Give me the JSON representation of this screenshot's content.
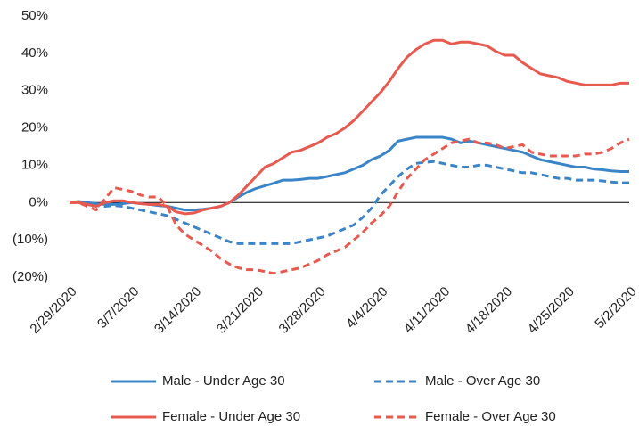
{
  "chart_data": {
    "type": "line",
    "categories": [
      "2/29/2020",
      null,
      null,
      null,
      null,
      null,
      null,
      "3/7/2020",
      null,
      null,
      null,
      null,
      null,
      null,
      "3/14/2020",
      null,
      null,
      null,
      null,
      null,
      null,
      "3/21/2020",
      null,
      null,
      null,
      null,
      null,
      null,
      "3/28/2020",
      null,
      null,
      null,
      null,
      null,
      null,
      "4/4/2020",
      null,
      null,
      null,
      null,
      null,
      null,
      "4/11/2020",
      null,
      null,
      null,
      null,
      null,
      null,
      "4/18/2020",
      null,
      null,
      null,
      null,
      null,
      null,
      "4/25/2020",
      null,
      null,
      null,
      null,
      null,
      null,
      "5/2/2020"
    ],
    "ylim": [
      -20,
      50
    ],
    "yticks": [
      {
        "value": 50,
        "label": "50%"
      },
      {
        "value": 40,
        "label": "40%"
      },
      {
        "value": 30,
        "label": "30%"
      },
      {
        "value": 20,
        "label": "20%"
      },
      {
        "value": 10,
        "label": "10%"
      },
      {
        "value": 0,
        "label": "0%"
      },
      {
        "value": -10,
        "label": "(10%)"
      },
      {
        "value": -20,
        "label": "(20%)"
      }
    ],
    "series": [
      {
        "name": "Male - Under Age 30",
        "color": "#3a85c8",
        "dashed": false,
        "values": [
          0,
          0.3,
          0,
          -0.3,
          -0.5,
          -0.5,
          -0.3,
          0,
          -0.3,
          -0.5,
          -0.8,
          -1,
          -1.5,
          -2,
          -2,
          -1.8,
          -1.5,
          -1,
          0,
          1.5,
          2.8,
          3.8,
          4.5,
          5.2,
          6,
          6,
          6.2,
          6.5,
          6.5,
          7,
          7.5,
          8,
          9,
          10,
          11.5,
          12.5,
          14,
          16.5,
          17,
          17.5,
          17.5,
          17.5,
          17.5,
          17,
          16,
          16.5,
          16,
          15.5,
          15,
          14.5,
          14,
          13.5,
          12.5,
          11.5,
          11,
          10.5,
          10,
          9.5,
          9.5,
          9,
          8.8,
          8.5,
          8.3,
          8.3
        ]
      },
      {
        "name": "Male - Over Age 30",
        "color": "#3a85c8",
        "dashed": true,
        "values": [
          0,
          0,
          -0.3,
          -0.8,
          -1,
          -0.8,
          -1,
          -1.5,
          -2,
          -2.5,
          -3,
          -3.5,
          -4.5,
          -5.5,
          -6.5,
          -7.5,
          -8.5,
          -9.5,
          -10.5,
          -11,
          -11,
          -11,
          -11,
          -11,
          -11,
          -11,
          -10.5,
          -10,
          -9.5,
          -9,
          -8,
          -7,
          -6,
          -4,
          -1.5,
          2,
          4.5,
          7,
          9,
          10.5,
          10.8,
          11,
          10.5,
          10,
          9.5,
          9.5,
          10,
          10,
          9.5,
          9,
          8.5,
          8,
          8,
          7.5,
          7,
          6.5,
          6.5,
          6,
          6,
          6,
          5.8,
          5.5,
          5.3,
          5.3
        ]
      },
      {
        "name": "Female - Under Age 30",
        "color": "#e85a4f",
        "dashed": false,
        "values": [
          0,
          0,
          -0.5,
          -1,
          0,
          0.5,
          0.5,
          0,
          -0.3,
          -0.5,
          -0.5,
          -1,
          -2.5,
          -3,
          -2.8,
          -2,
          -1.5,
          -1,
          0,
          2,
          4.5,
          7,
          9.5,
          10.5,
          12,
          13.5,
          14,
          15,
          16,
          17.5,
          18.5,
          20,
          22,
          24.5,
          27,
          29.5,
          32.5,
          36,
          39,
          41,
          42.5,
          43.5,
          43.5,
          42.5,
          43,
          43,
          42.5,
          42,
          40.5,
          39.5,
          39.5,
          37.5,
          36,
          34.5,
          34,
          33.5,
          32.5,
          32,
          31.5,
          31.5,
          31.5,
          31.5,
          32,
          32
        ]
      },
      {
        "name": "Female - Over Age 30",
        "color": "#e85a4f",
        "dashed": true,
        "values": [
          0,
          0,
          -1,
          -2,
          1,
          4,
          3.5,
          3,
          2,
          1.5,
          1.5,
          -1,
          -6,
          -8.5,
          -10,
          -11.5,
          -13,
          -15,
          -16.5,
          -17.5,
          -18,
          -18,
          -18.5,
          -19,
          -18.5,
          -18,
          -17.5,
          -16.5,
          -15.5,
          -14,
          -13,
          -12,
          -10,
          -8,
          -5.5,
          -3.5,
          -1,
          3,
          6.5,
          9,
          11.5,
          13,
          14.5,
          16,
          16.5,
          17,
          16,
          16,
          15.5,
          14.5,
          15,
          15.5,
          13.5,
          13,
          12.5,
          12.5,
          12.5,
          12.5,
          13,
          13,
          13.5,
          14.5,
          16,
          17
        ]
      }
    ]
  }
}
